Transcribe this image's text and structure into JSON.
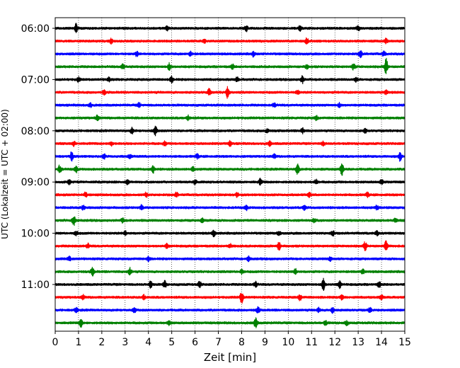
{
  "chart_data": {
    "type": "line",
    "title": "",
    "xlabel": "Zeit  [min]",
    "ylabel": "UTC (Lokalzeit = UTC + 02:00)",
    "xlim": [
      0,
      15
    ],
    "x_ticks": [
      "0",
      "1",
      "2",
      "3",
      "4",
      "5",
      "6",
      "7",
      "8",
      "9",
      "10",
      "11",
      "12",
      "13",
      "14",
      "15"
    ],
    "y_ticks": [
      "06:00",
      "07:00",
      "08:00",
      "09:00",
      "10:00",
      "11:00"
    ],
    "grid": "vertical dotted",
    "trace_interval_min": 15,
    "color_cycle": [
      "#000000",
      "#ff0000",
      "#0000ff",
      "#008000"
    ],
    "series": [
      {
        "start": "06:00",
        "events": [
          [
            0.9,
            6
          ],
          [
            4.8,
            3
          ],
          [
            8.2,
            4
          ],
          [
            10.5,
            3
          ],
          [
            13.0,
            3
          ]
        ]
      },
      {
        "start": "06:15",
        "events": [
          [
            2.4,
            3
          ],
          [
            6.4,
            3
          ],
          [
            10.8,
            4
          ],
          [
            14.2,
            3
          ]
        ]
      },
      {
        "start": "06:30",
        "events": [
          [
            3.5,
            3
          ],
          [
            5.8,
            3
          ],
          [
            8.5,
            3
          ],
          [
            13.1,
            5
          ],
          [
            14.1,
            3
          ]
        ]
      },
      {
        "start": "06:45",
        "events": [
          [
            2.9,
            4
          ],
          [
            4.9,
            5
          ],
          [
            7.6,
            3
          ],
          [
            10.8,
            3
          ],
          [
            12.8,
            4
          ],
          [
            14.2,
            12
          ]
        ]
      },
      {
        "start": "07:00",
        "events": [
          [
            1.0,
            3
          ],
          [
            2.3,
            3
          ],
          [
            5.0,
            4
          ],
          [
            7.8,
            3
          ],
          [
            10.6,
            5
          ],
          [
            12.9,
            3
          ]
        ]
      },
      {
        "start": "07:15",
        "events": [
          [
            2.1,
            3
          ],
          [
            6.6,
            5
          ],
          [
            7.4,
            8
          ],
          [
            10.4,
            3
          ],
          [
            14.2,
            3
          ]
        ]
      },
      {
        "start": "07:30",
        "events": [
          [
            1.5,
            3
          ],
          [
            3.6,
            3
          ],
          [
            9.4,
            3
          ],
          [
            12.2,
            3
          ]
        ]
      },
      {
        "start": "07:45",
        "events": [
          [
            1.8,
            4
          ],
          [
            5.7,
            3
          ],
          [
            11.2,
            3
          ]
        ]
      },
      {
        "start": "08:00",
        "events": [
          [
            3.3,
            4
          ],
          [
            4.3,
            6
          ],
          [
            9.1,
            3
          ],
          [
            10.6,
            4
          ],
          [
            13.3,
            3
          ]
        ]
      },
      {
        "start": "08:15",
        "events": [
          [
            0.8,
            3
          ],
          [
            2.4,
            3
          ],
          [
            4.7,
            3
          ],
          [
            7.5,
            3
          ],
          [
            9.2,
            3
          ],
          [
            11.5,
            3
          ]
        ]
      },
      {
        "start": "08:30",
        "events": [
          [
            0.7,
            6
          ],
          [
            2.1,
            3
          ],
          [
            3.2,
            3
          ],
          [
            6.1,
            3
          ],
          [
            9.4,
            3
          ],
          [
            14.8,
            6
          ]
        ]
      },
      {
        "start": "08:45",
        "events": [
          [
            0.2,
            6
          ],
          [
            0.9,
            4
          ],
          [
            4.2,
            5
          ],
          [
            5.9,
            3
          ],
          [
            10.4,
            8
          ],
          [
            12.3,
            10
          ]
        ]
      },
      {
        "start": "09:00",
        "events": [
          [
            0.6,
            3
          ],
          [
            3.1,
            3
          ],
          [
            6.0,
            3
          ],
          [
            8.8,
            4
          ],
          [
            11.2,
            3
          ],
          [
            14.0,
            3
          ]
        ]
      },
      {
        "start": "09:15",
        "events": [
          [
            1.3,
            3
          ],
          [
            3.9,
            3
          ],
          [
            5.2,
            3
          ],
          [
            7.8,
            3
          ],
          [
            10.9,
            3
          ],
          [
            13.4,
            3
          ]
        ]
      },
      {
        "start": "09:30",
        "events": [
          [
            1.2,
            3
          ],
          [
            3.7,
            3
          ],
          [
            8.2,
            3
          ],
          [
            10.7,
            3
          ],
          [
            13.8,
            3
          ]
        ]
      },
      {
        "start": "09:45",
        "events": [
          [
            0.8,
            8
          ],
          [
            2.9,
            3
          ],
          [
            6.3,
            3
          ],
          [
            11.1,
            3
          ],
          [
            14.6,
            3
          ]
        ]
      },
      {
        "start": "10:00",
        "events": [
          [
            0.9,
            3
          ],
          [
            3.0,
            3
          ],
          [
            6.8,
            5
          ],
          [
            9.6,
            3
          ],
          [
            11.9,
            4
          ],
          [
            13.8,
            3
          ]
        ]
      },
      {
        "start": "10:15",
        "events": [
          [
            1.4,
            3
          ],
          [
            4.8,
            3
          ],
          [
            7.5,
            3
          ],
          [
            9.6,
            6
          ],
          [
            13.3,
            6
          ],
          [
            14.2,
            7
          ]
        ]
      },
      {
        "start": "10:30",
        "events": [
          [
            0.6,
            3
          ],
          [
            4.0,
            3
          ],
          [
            8.3,
            3
          ],
          [
            11.8,
            3
          ]
        ]
      },
      {
        "start": "10:45",
        "events": [
          [
            1.6,
            6
          ],
          [
            3.2,
            5
          ],
          [
            8.0,
            3
          ],
          [
            10.3,
            4
          ],
          [
            13.2,
            3
          ]
        ]
      },
      {
        "start": "11:00",
        "events": [
          [
            4.1,
            5
          ],
          [
            4.7,
            5
          ],
          [
            6.2,
            4
          ],
          [
            8.6,
            4
          ],
          [
            11.5,
            9
          ],
          [
            12.2,
            5
          ],
          [
            13.9,
            4
          ]
        ]
      },
      {
        "start": "11:15",
        "events": [
          [
            1.2,
            3
          ],
          [
            3.8,
            3
          ],
          [
            8.0,
            8
          ],
          [
            10.5,
            4
          ],
          [
            12.3,
            4
          ],
          [
            14.0,
            3
          ]
        ]
      },
      {
        "start": "11:30",
        "events": [
          [
            0.9,
            3
          ],
          [
            3.4,
            3
          ],
          [
            8.7,
            4
          ],
          [
            11.3,
            3
          ],
          [
            11.9,
            4
          ],
          [
            13.5,
            3
          ]
        ]
      },
      {
        "start": "11:45",
        "events": [
          [
            1.1,
            6
          ],
          [
            4.9,
            3
          ],
          [
            8.6,
            7
          ],
          [
            11.6,
            3
          ],
          [
            12.5,
            3
          ]
        ]
      }
    ]
  }
}
